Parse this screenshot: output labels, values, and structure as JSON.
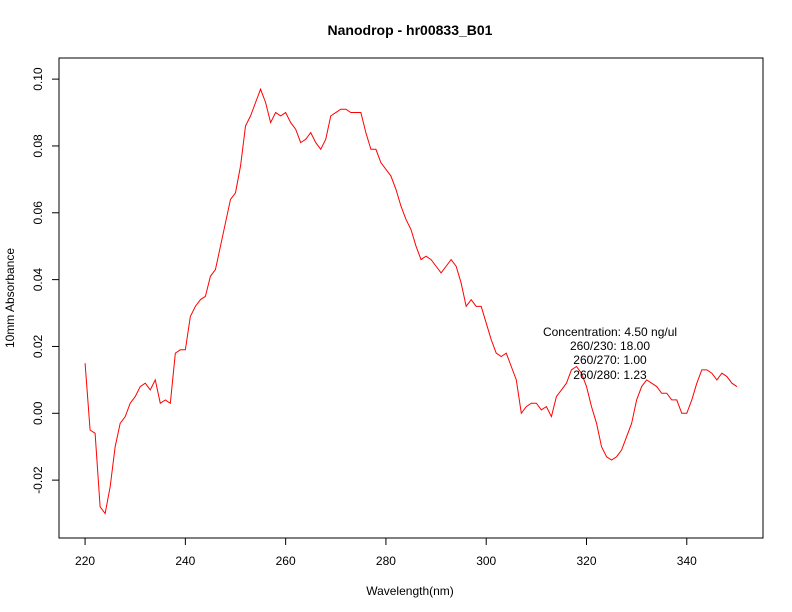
{
  "chart_data": {
    "type": "line",
    "title": "Nanodrop - hr00833_B01",
    "xlabel": "Wavelength(nm)",
    "ylabel": "10mm Absorbance",
    "xlim": [
      220,
      350
    ],
    "ylim": [
      -0.032,
      0.101
    ],
    "x_ticks": [
      220,
      240,
      260,
      280,
      300,
      320,
      340
    ],
    "x_tick_labels": [
      "220",
      "240",
      "260",
      "280",
      "300",
      "320",
      "340"
    ],
    "y_ticks": [
      -0.02,
      0.0,
      0.02,
      0.04,
      0.06,
      0.08,
      0.1
    ],
    "y_tick_labels": [
      "-0.02",
      "0.00",
      "0.02",
      "0.04",
      "0.06",
      "0.08",
      "0.10"
    ],
    "grid": false,
    "line_color": "#ff0000",
    "series": [
      {
        "x": [
          220,
          221,
          222,
          223,
          224,
          225,
          226,
          227,
          228,
          229,
          230,
          231,
          232,
          233,
          234,
          235,
          236,
          237,
          238,
          239,
          240,
          241,
          242,
          243,
          244,
          245,
          246,
          247,
          248,
          249,
          250,
          251,
          252,
          253,
          254,
          255,
          256,
          257,
          258,
          259,
          260,
          261,
          262,
          263,
          264,
          265,
          266,
          267,
          268,
          269,
          270,
          271,
          272,
          273,
          274,
          275,
          276,
          277,
          278,
          279,
          280,
          281,
          282,
          283,
          284,
          285,
          286,
          287,
          288,
          289,
          290,
          291,
          292,
          293,
          294,
          295,
          296,
          297,
          298,
          299,
          300,
          301,
          302,
          303,
          304,
          305,
          306,
          307,
          308,
          309,
          310,
          311,
          312,
          313,
          314,
          315,
          316,
          317,
          318,
          319,
          320,
          321,
          322,
          323,
          324,
          325,
          326,
          327,
          328,
          329,
          330,
          331,
          332,
          333,
          334,
          335,
          336,
          337,
          338,
          339,
          340,
          341,
          342,
          343,
          344,
          345,
          346,
          347,
          348,
          349,
          350
        ],
        "values": [
          0.015,
          -0.005,
          -0.006,
          -0.028,
          -0.03,
          -0.022,
          -0.01,
          -0.003,
          -0.001,
          0.003,
          0.005,
          0.008,
          0.009,
          0.007,
          0.01,
          0.003,
          0.004,
          0.003,
          0.018,
          0.019,
          0.019,
          0.029,
          0.032,
          0.034,
          0.035,
          0.041,
          0.043,
          0.05,
          0.057,
          0.064,
          0.066,
          0.074,
          0.086,
          0.089,
          0.093,
          0.097,
          0.093,
          0.087,
          0.09,
          0.089,
          0.09,
          0.087,
          0.085,
          0.081,
          0.082,
          0.084,
          0.081,
          0.079,
          0.082,
          0.089,
          0.09,
          0.091,
          0.091,
          0.09,
          0.09,
          0.09,
          0.084,
          0.079,
          0.079,
          0.075,
          0.073,
          0.071,
          0.067,
          0.062,
          0.058,
          0.055,
          0.05,
          0.046,
          0.047,
          0.046,
          0.044,
          0.042,
          0.044,
          0.046,
          0.044,
          0.039,
          0.032,
          0.034,
          0.032,
          0.032,
          0.027,
          0.022,
          0.018,
          0.017,
          0.018,
          0.014,
          0.01,
          0.0,
          0.002,
          0.003,
          0.003,
          0.001,
          0.002,
          -0.001,
          0.005,
          0.007,
          0.009,
          0.013,
          0.014,
          0.012,
          0.008,
          0.002,
          -0.003,
          -0.01,
          -0.013,
          -0.014,
          -0.013,
          -0.011,
          -0.007,
          -0.003,
          0.004,
          0.008,
          0.01,
          0.009,
          0.008,
          0.006,
          0.006,
          0.004,
          0.004,
          0.0,
          0.0,
          0.004,
          0.009,
          0.013,
          0.013,
          0.012,
          0.01,
          0.012,
          0.011,
          0.009,
          0.008
        ]
      }
    ],
    "annotations": [
      "Concentration: 4.50 ng/ul",
      "260/230: 18.00",
      "260/270: 1.00",
      "260/280: 1.23"
    ]
  }
}
